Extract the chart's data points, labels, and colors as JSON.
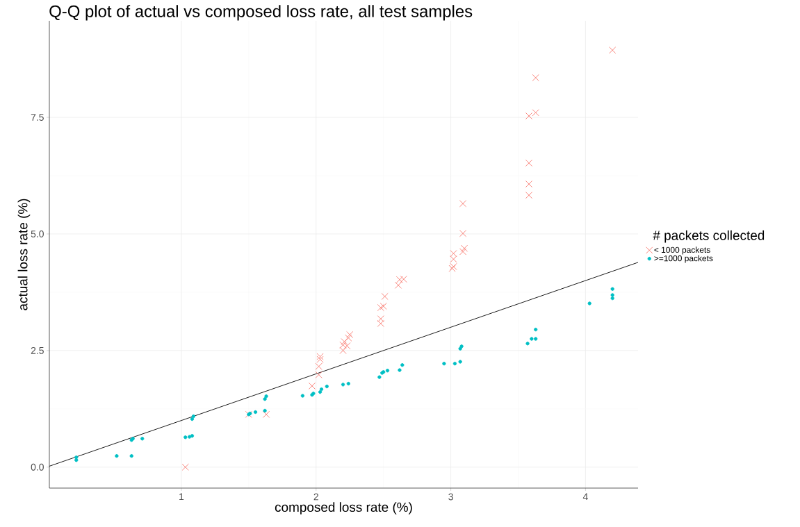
{
  "chart_data": {
    "type": "scatter",
    "title": "Q-Q plot of actual vs composed loss rate, all test samples",
    "xlabel": "composed loss rate (%)",
    "ylabel": "actual loss rate (%)",
    "legend_title": "# packets collected",
    "xlim": [
      0.02,
      4.39
    ],
    "ylim": [
      -0.45,
      9.57
    ],
    "xticks": [
      1,
      2,
      3,
      4
    ],
    "yticks": [
      {
        "value": 0,
        "label": "0.0"
      },
      {
        "value": 2.5,
        "label": "2.5"
      },
      {
        "value": 5,
        "label": "5.0"
      },
      {
        "value": 7.5,
        "label": "7.5"
      }
    ],
    "grid": true,
    "legend": "right",
    "series": [
      {
        "name": "< 1000 packets",
        "color": "#f8766d",
        "marker": "cross",
        "x": [
          1.03,
          1.5,
          1.63,
          1.97,
          2.02,
          2.02,
          2.03,
          2.03,
          2.2,
          2.2,
          2.21,
          2.23,
          2.24,
          2.25,
          2.48,
          2.48,
          2.48,
          2.5,
          2.51,
          2.61,
          2.62,
          2.65,
          3.01,
          3.02,
          3.02,
          3.02,
          3.09,
          3.1,
          3.09,
          3.09,
          3.58,
          3.58,
          3.58,
          3.58,
          3.63,
          3.63,
          4.2
        ],
        "values": [
          0.0,
          1.13,
          1.13,
          1.74,
          1.98,
          2.16,
          2.31,
          2.37,
          2.5,
          2.62,
          2.69,
          2.6,
          2.77,
          2.84,
          3.08,
          3.18,
          3.42,
          3.45,
          3.66,
          3.9,
          4.02,
          4.03,
          4.26,
          4.3,
          4.46,
          4.58,
          4.62,
          4.69,
          5.01,
          5.65,
          5.83,
          6.07,
          6.52,
          7.53,
          7.6,
          8.35,
          8.94
        ]
      },
      {
        "name": ">=1000 packets",
        "color": "#00bfc4",
        "marker": "circle",
        "x": [
          0.22,
          0.22,
          0.52,
          0.63,
          0.63,
          0.64,
          0.71,
          1.03,
          1.06,
          1.08,
          1.08,
          1.09,
          1.5,
          1.51,
          1.55,
          1.62,
          1.62,
          1.63,
          1.9,
          1.97,
          1.98,
          2.03,
          2.04,
          2.08,
          2.2,
          2.24,
          2.47,
          2.49,
          2.5,
          2.53,
          2.62,
          2.64,
          2.95,
          3.03,
          3.07,
          3.07,
          3.08,
          3.57,
          3.6,
          3.63,
          3.63,
          4.03,
          4.2,
          4.2,
          4.2
        ],
        "values": [
          0.21,
          0.15,
          0.24,
          0.24,
          0.58,
          0.61,
          0.61,
          0.64,
          0.65,
          0.67,
          1.03,
          1.09,
          1.13,
          1.15,
          1.18,
          1.21,
          1.46,
          1.52,
          1.53,
          1.55,
          1.58,
          1.61,
          1.67,
          1.73,
          1.77,
          1.79,
          1.93,
          2.02,
          2.04,
          2.07,
          2.08,
          2.19,
          2.22,
          2.22,
          2.26,
          2.54,
          2.59,
          2.65,
          2.75,
          2.75,
          2.95,
          3.51,
          3.62,
          3.69,
          3.82
        ]
      },
      {
        "type": "line",
        "color": "#000000",
        "marker": "none",
        "x": [
          0.02,
          4.39
        ],
        "values": [
          0.02,
          4.39
        ]
      }
    ]
  }
}
